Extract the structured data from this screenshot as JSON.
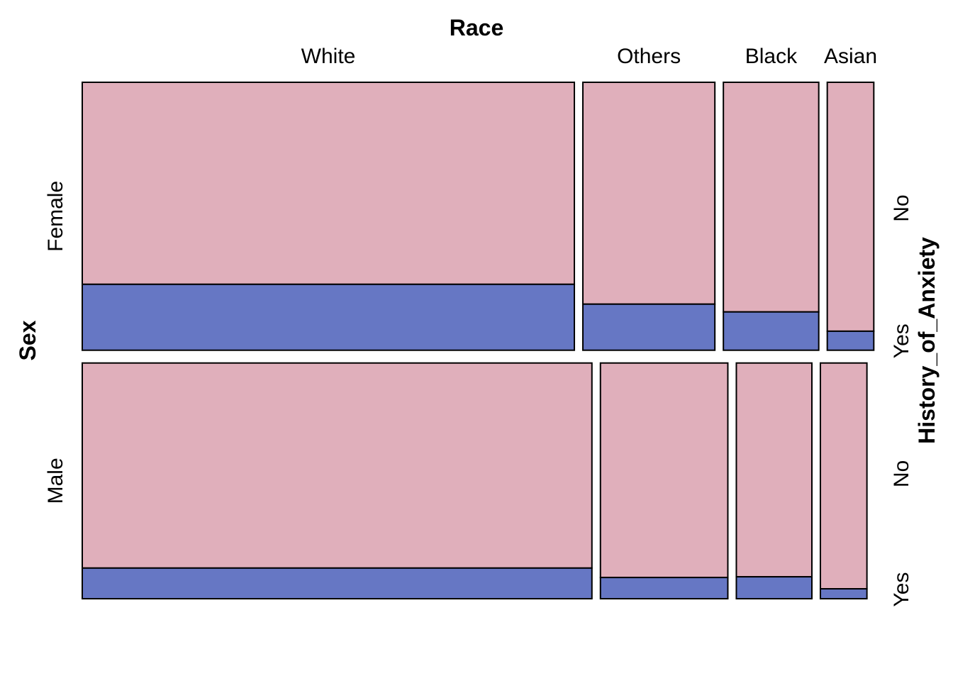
{
  "chart_data": {
    "type": "mosaic",
    "x_title": "Race",
    "y_title": "Sex",
    "z_title": "History_of_Anxiety",
    "x_categories": [
      "White",
      "Others",
      "Black",
      "Asian"
    ],
    "y_categories": [
      "Female",
      "Male"
    ],
    "z_categories": [
      "No",
      "Yes"
    ],
    "colors": {
      "No": "#e0afbb",
      "Yes": "#6677c4"
    },
    "sex_proportions": {
      "Female": 0.532,
      "Male": 0.468
    },
    "race_proportions_within_sex": {
      "Female": {
        "White": 0.645,
        "Others": 0.173,
        "Black": 0.125,
        "Asian": 0.061
      },
      "Male": {
        "White": 0.668,
        "Others": 0.167,
        "Black": 0.099,
        "Asian": 0.061
      }
    },
    "yes_proportion_within_race_sex": {
      "Female": {
        "White": 0.246,
        "Others": 0.172,
        "Black": 0.143,
        "Asian": 0.071
      },
      "Male": {
        "White": 0.13,
        "Others": 0.09,
        "Black": 0.093,
        "Asian": 0.042
      }
    }
  }
}
